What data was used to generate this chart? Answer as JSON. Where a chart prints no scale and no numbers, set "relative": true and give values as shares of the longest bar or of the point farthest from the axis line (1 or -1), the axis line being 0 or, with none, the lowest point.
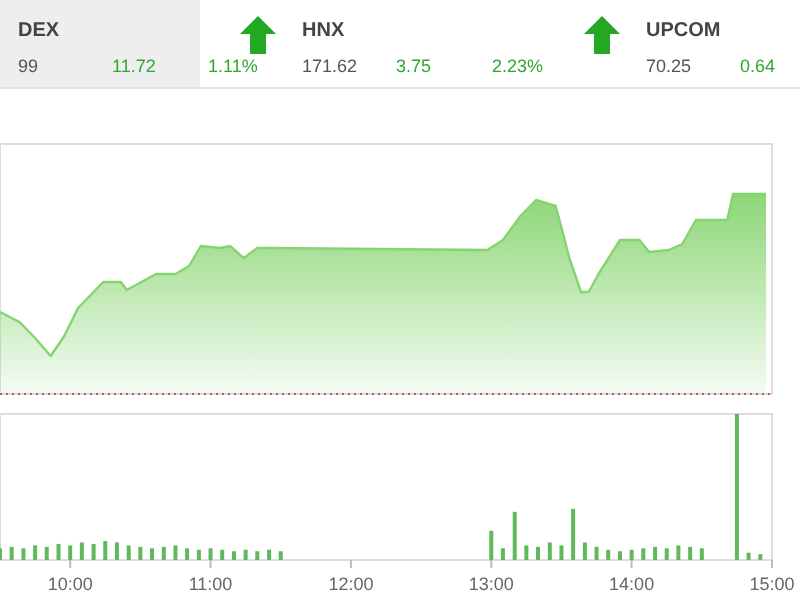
{
  "chart_data": [
    {
      "type": "other",
      "annotations": [
        "DEX",
        "99",
        "11.72",
        "1.11%",
        "HNX",
        "171.62",
        "3.75",
        "2.23%",
        "UPCOM",
        "70.25",
        "0.64"
      ]
    },
    {
      "type": "area",
      "relative": true,
      "color": "#86d46f",
      "tick_labels": false,
      "xlim": [
        9.5,
        15
      ],
      "x": [
        9.5,
        9.639,
        9.75,
        9.861,
        9.958,
        10.056,
        10.194,
        10.236,
        10.361,
        10.403,
        10.611,
        10.75,
        10.847,
        10.931,
        11.069,
        11.139,
        11.236,
        11.333,
        11.417,
        12.972,
        13.083,
        13.208,
        13.319,
        13.458,
        13.486,
        13.556,
        13.639,
        13.694,
        13.764,
        13.917,
        14.056,
        14.125,
        14.264,
        14.361,
        14.458,
        14.681,
        14.722,
        14.958
      ],
      "values": [
        0.41,
        0.36,
        0.28,
        0.19,
        0.29,
        0.43,
        0.53,
        0.56,
        0.56,
        0.52,
        0.6,
        0.6,
        0.64,
        0.74,
        0.73,
        0.74,
        0.68,
        0.73,
        0.73,
        0.72,
        0.77,
        0.89,
        0.97,
        0.94,
        0.87,
        0.68,
        0.51,
        0.51,
        0.6,
        0.77,
        0.77,
        0.71,
        0.72,
        0.75,
        0.87,
        0.87,
        1,
        1
      ]
    },
    {
      "type": "bar",
      "relative": true,
      "color": "#5fb85a",
      "tick_labels": "x",
      "xlim": [
        9.5,
        15
      ],
      "xticks": [
        {
          "value": 10,
          "label": "10:00"
        },
        {
          "value": 11,
          "label": "11:00"
        },
        {
          "value": 12,
          "label": "12:00"
        },
        {
          "value": 13,
          "label": "13:00"
        },
        {
          "value": 14,
          "label": "14:00"
        },
        {
          "value": 15,
          "label": "15:00"
        }
      ],
      "x": [
        9.5,
        9.583,
        9.667,
        9.75,
        9.833,
        9.917,
        10,
        10.083,
        10.167,
        10.25,
        10.333,
        10.417,
        10.5,
        10.583,
        10.667,
        10.75,
        10.833,
        10.917,
        11,
        11.083,
        11.167,
        11.25,
        11.333,
        11.417,
        11.5,
        13,
        13.083,
        13.167,
        13.25,
        13.333,
        13.417,
        13.5,
        13.583,
        13.667,
        13.75,
        13.833,
        13.917,
        14,
        14.083,
        14.167,
        14.25,
        14.333,
        14.417,
        14.5,
        14.75,
        14.833,
        14.917
      ],
      "values": [
        0.08,
        0.09,
        0.08,
        0.1,
        0.09,
        0.11,
        0.1,
        0.12,
        0.11,
        0.13,
        0.12,
        0.1,
        0.09,
        0.08,
        0.09,
        0.1,
        0.08,
        0.07,
        0.08,
        0.07,
        0.06,
        0.07,
        0.06,
        0.07,
        0.06,
        0.2,
        0.08,
        0.33,
        0.1,
        0.09,
        0.12,
        0.1,
        0.35,
        0.12,
        0.09,
        0.07,
        0.06,
        0.07,
        0.08,
        0.09,
        0.08,
        0.1,
        0.09,
        0.08,
        1,
        0.05,
        0.04
      ]
    }
  ]
}
